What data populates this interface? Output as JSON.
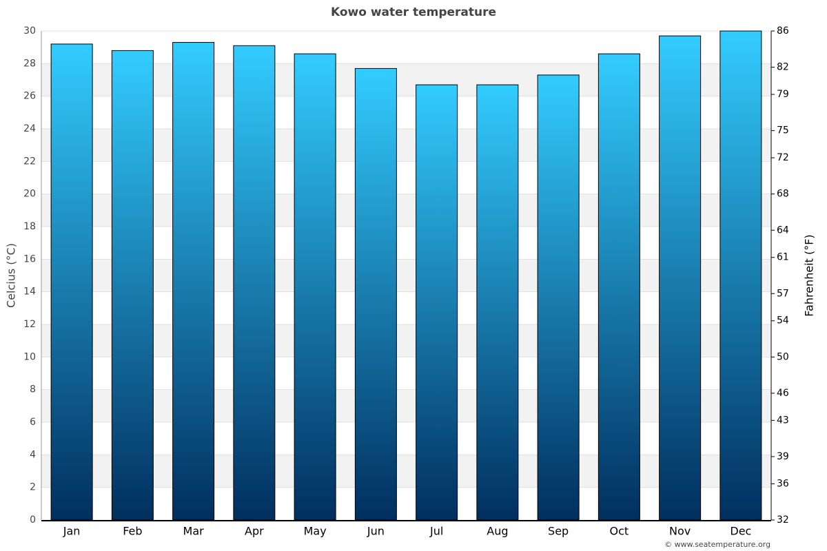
{
  "chart_data": {
    "type": "bar",
    "title": "Kowo water temperature",
    "categories": [
      "Jan",
      "Feb",
      "Mar",
      "Apr",
      "May",
      "Jun",
      "Jul",
      "Aug",
      "Sep",
      "Oct",
      "Nov",
      "Dec"
    ],
    "values": [
      29.2,
      28.8,
      29.3,
      29.1,
      28.6,
      27.7,
      26.7,
      26.7,
      27.3,
      28.6,
      29.7,
      30.0
    ],
    "gradient": [
      "#33ccff",
      "#002f5f"
    ],
    "ylabel": "Celcius (°C)",
    "y2label": "Fahrenheit (°F)",
    "ylim": [
      0,
      30
    ],
    "yticks": [
      0,
      2,
      4,
      6,
      8,
      10,
      12,
      14,
      16,
      18,
      20,
      22,
      24,
      26,
      28,
      30
    ],
    "y2lim": [
      32,
      86
    ],
    "y2ticks": [
      32,
      36,
      39,
      43,
      46,
      50,
      54,
      57,
      61,
      64,
      68,
      72,
      75,
      79,
      82,
      86
    ],
    "grid": true,
    "credit": "© www.seatemperature.org"
  }
}
